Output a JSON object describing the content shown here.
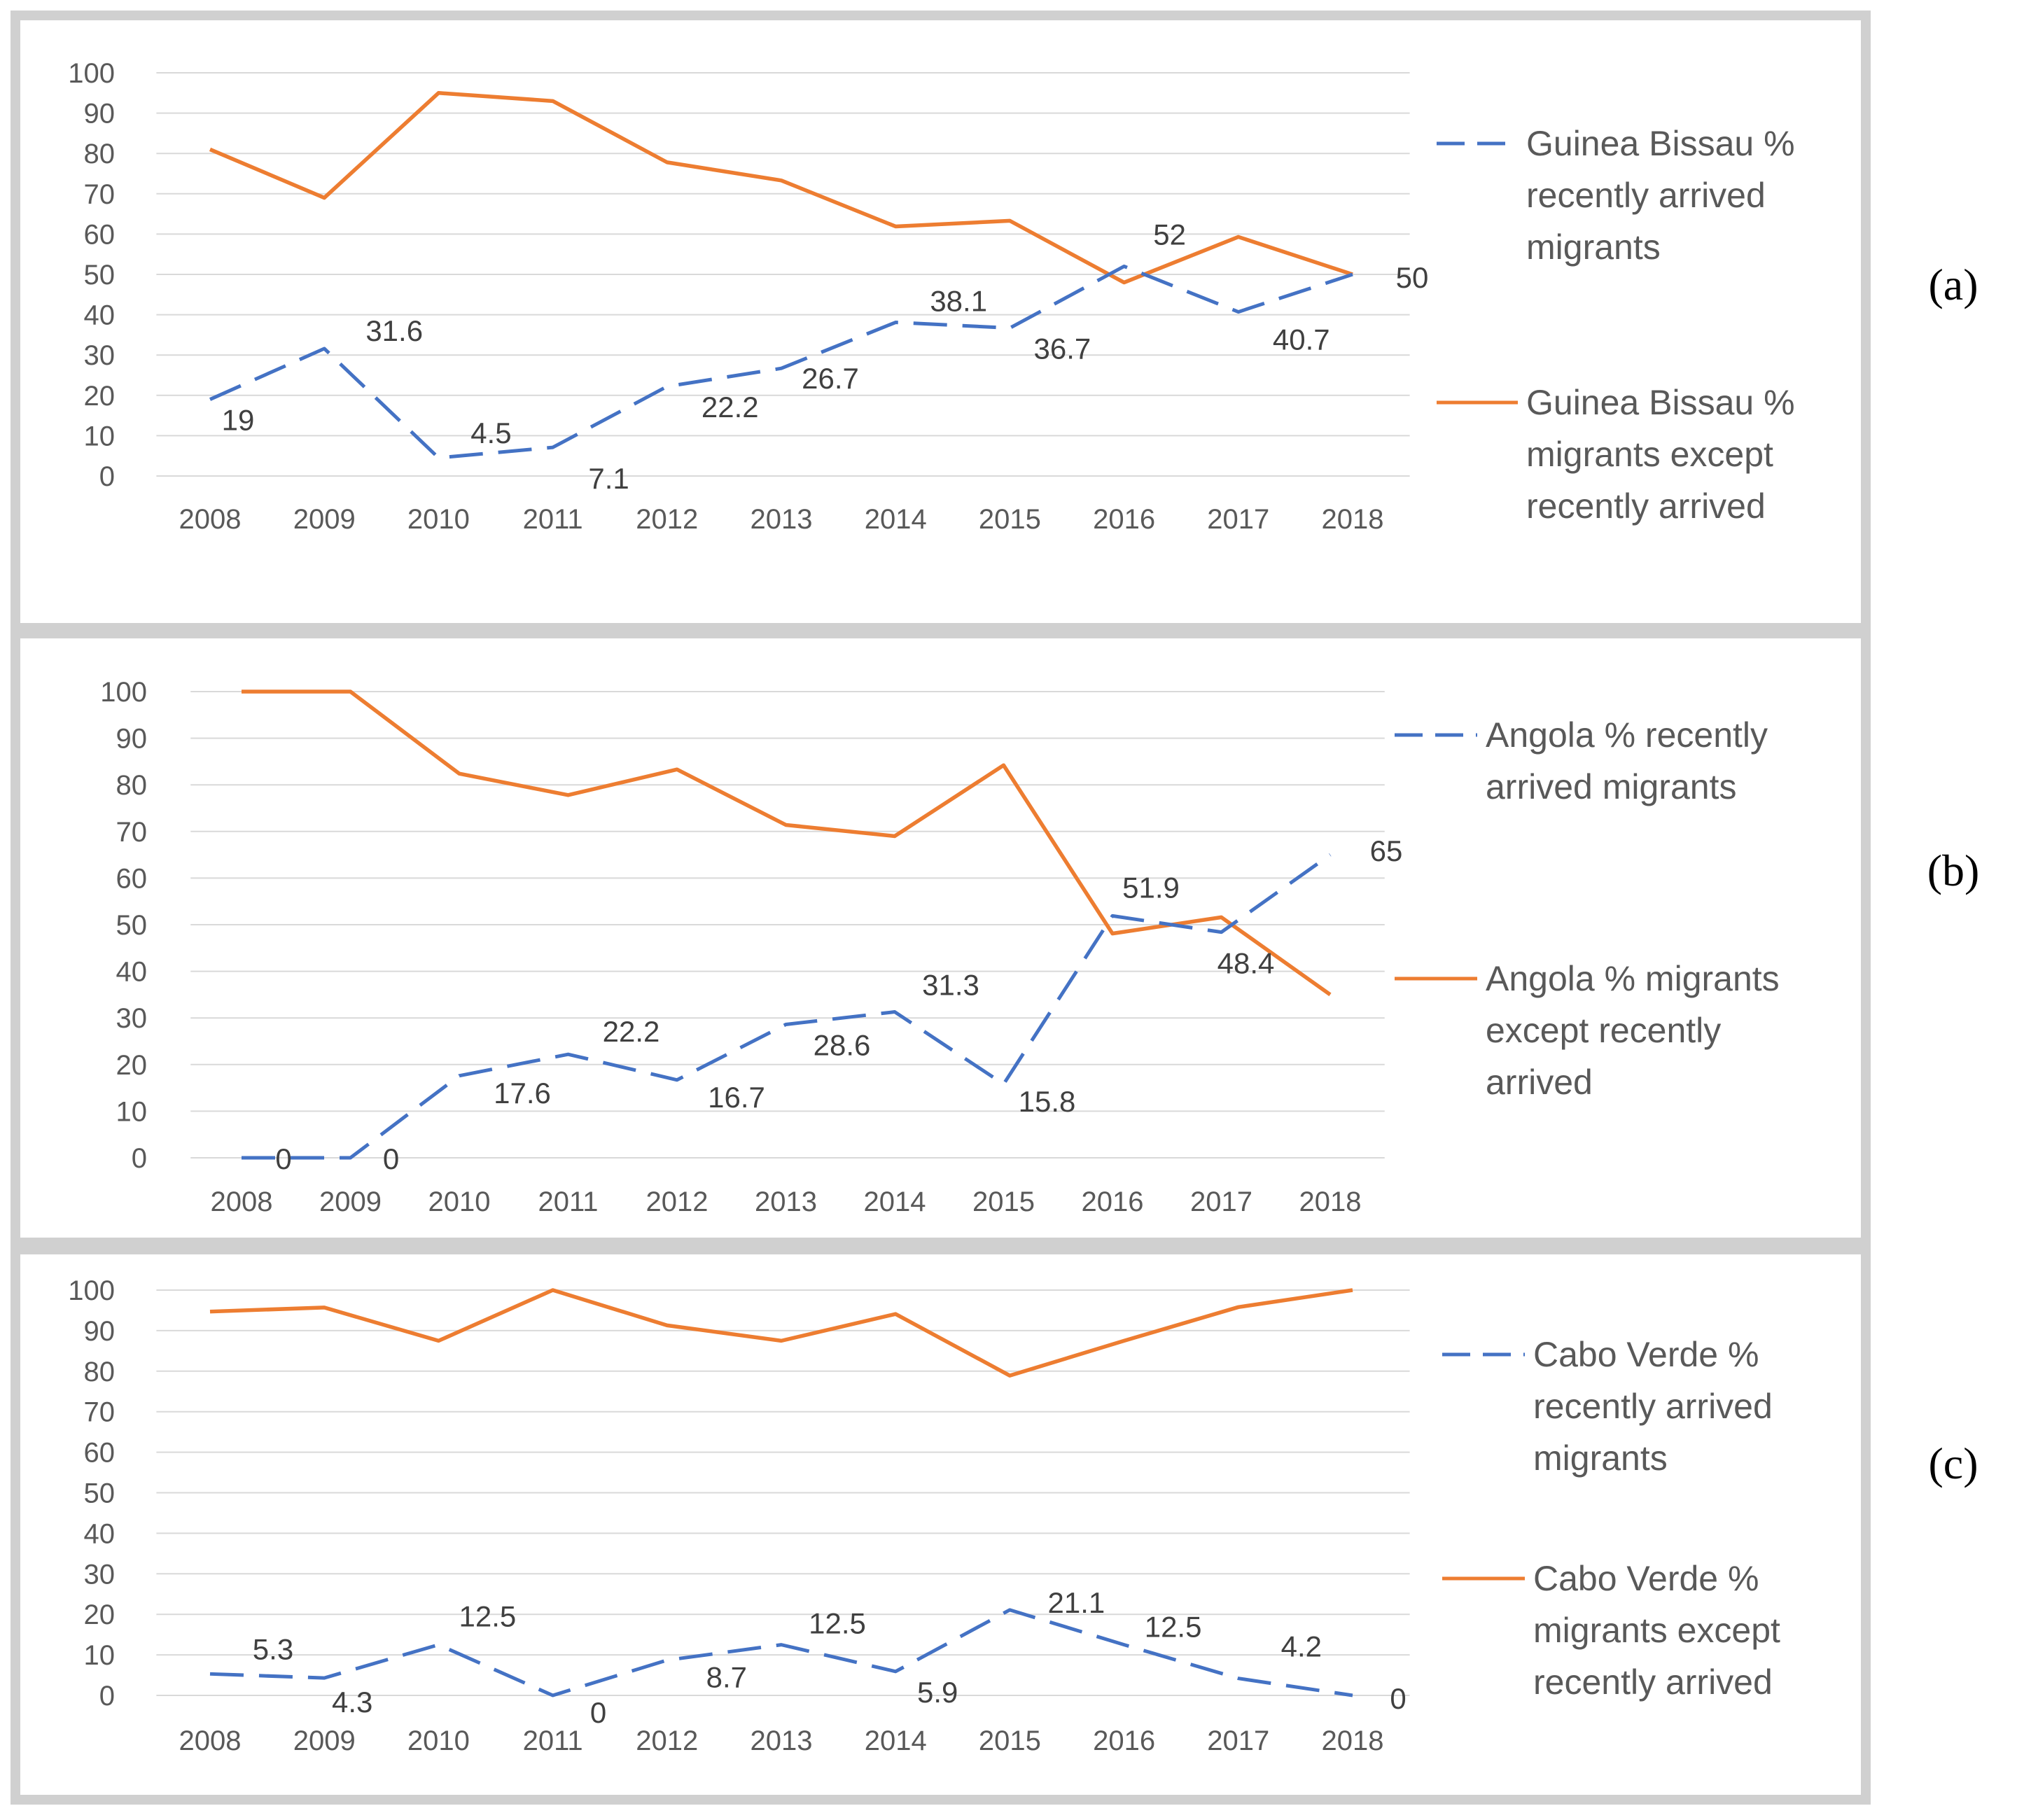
{
  "chart_data": [
    {
      "type": "line",
      "panel_label": "(a)",
      "categories": [
        "2008",
        "2009",
        "2010",
        "2011",
        "2012",
        "2013",
        "2014",
        "2015",
        "2016",
        "2017",
        "2018"
      ],
      "ylim": [
        0,
        100
      ],
      "yticks": [
        "0",
        "10",
        "20",
        "30",
        "40",
        "50",
        "60",
        "70",
        "80",
        "90",
        "100"
      ],
      "series": [
        {
          "name": "Guinea Bissau % recently arrived migrants",
          "style": "dashed",
          "color": "#4472C4",
          "values": [
            19,
            31.6,
            4.5,
            7.1,
            22.2,
            26.7,
            38.1,
            36.7,
            52,
            40.7,
            50
          ],
          "data_labels": [
            "19",
            "31.6",
            "4.5",
            "7.1",
            "22.2",
            "26.7",
            "38.1",
            "36.7",
            "52",
            "40.7",
            "50"
          ]
        },
        {
          "name": "Guinea Bissau % migrants except recently arrived",
          "style": "solid",
          "color": "#ED7D31",
          "values": [
            81,
            69,
            95,
            93,
            77.8,
            73.3,
            61.9,
            63.3,
            48,
            59.3,
            50
          ]
        }
      ],
      "legend_position": "right",
      "grid": true
    },
    {
      "type": "line",
      "panel_label": "(b)",
      "categories": [
        "2008",
        "2009",
        "2010",
        "2011",
        "2012",
        "2013",
        "2014",
        "2015",
        "2016",
        "2017",
        "2018"
      ],
      "ylim": [
        0,
        100
      ],
      "yticks": [
        "0",
        "10",
        "20",
        "30",
        "40",
        "50",
        "60",
        "70",
        "80",
        "90",
        "100"
      ],
      "series": [
        {
          "name": "Angola % recently arrived migrants",
          "style": "dashed",
          "color": "#4472C4",
          "values": [
            0,
            0,
            17.6,
            22.2,
            16.7,
            28.6,
            31.3,
            15.8,
            51.9,
            48.4,
            65
          ],
          "data_labels": [
            "0",
            "0",
            "17.6",
            "22.2",
            "16.7",
            "28.6",
            "31.3",
            "15.8",
            "51.9",
            "48.4",
            "65"
          ]
        },
        {
          "name": "Angola % migrants except recently arrived",
          "style": "solid",
          "color": "#ED7D31",
          "values": [
            100,
            100,
            82.4,
            77.8,
            83.3,
            71.4,
            69,
            84.2,
            48.1,
            51.6,
            35
          ]
        }
      ],
      "legend_position": "right",
      "grid": true
    },
    {
      "type": "line",
      "panel_label": "(c)",
      "categories": [
        "2008",
        "2009",
        "2010",
        "2011",
        "2012",
        "2013",
        "2014",
        "2015",
        "2016",
        "2017",
        "2018"
      ],
      "ylim": [
        0,
        100
      ],
      "yticks": [
        "0",
        "10",
        "20",
        "30",
        "40",
        "50",
        "60",
        "70",
        "80",
        "90",
        "100"
      ],
      "series": [
        {
          "name": "Cabo Verde % recently arrived migrants",
          "style": "dashed",
          "color": "#4472C4",
          "values": [
            5.3,
            4.3,
            12.5,
            0,
            8.7,
            12.5,
            5.9,
            21.1,
            12.5,
            4.2,
            0
          ],
          "data_labels": [
            "5.3",
            "4.3",
            "12.5",
            "0",
            "8.7",
            "12.5",
            "5.9",
            "21.1",
            "12.5",
            "4.2",
            "0"
          ]
        },
        {
          "name": "Cabo Verde % migrants except recently arrived",
          "style": "solid",
          "color": "#ED7D31",
          "values": [
            94.7,
            95.7,
            87.5,
            100,
            91.3,
            87.5,
            94.1,
            78.9,
            87.5,
            95.8,
            100
          ]
        }
      ],
      "legend_position": "right",
      "grid": true
    }
  ]
}
